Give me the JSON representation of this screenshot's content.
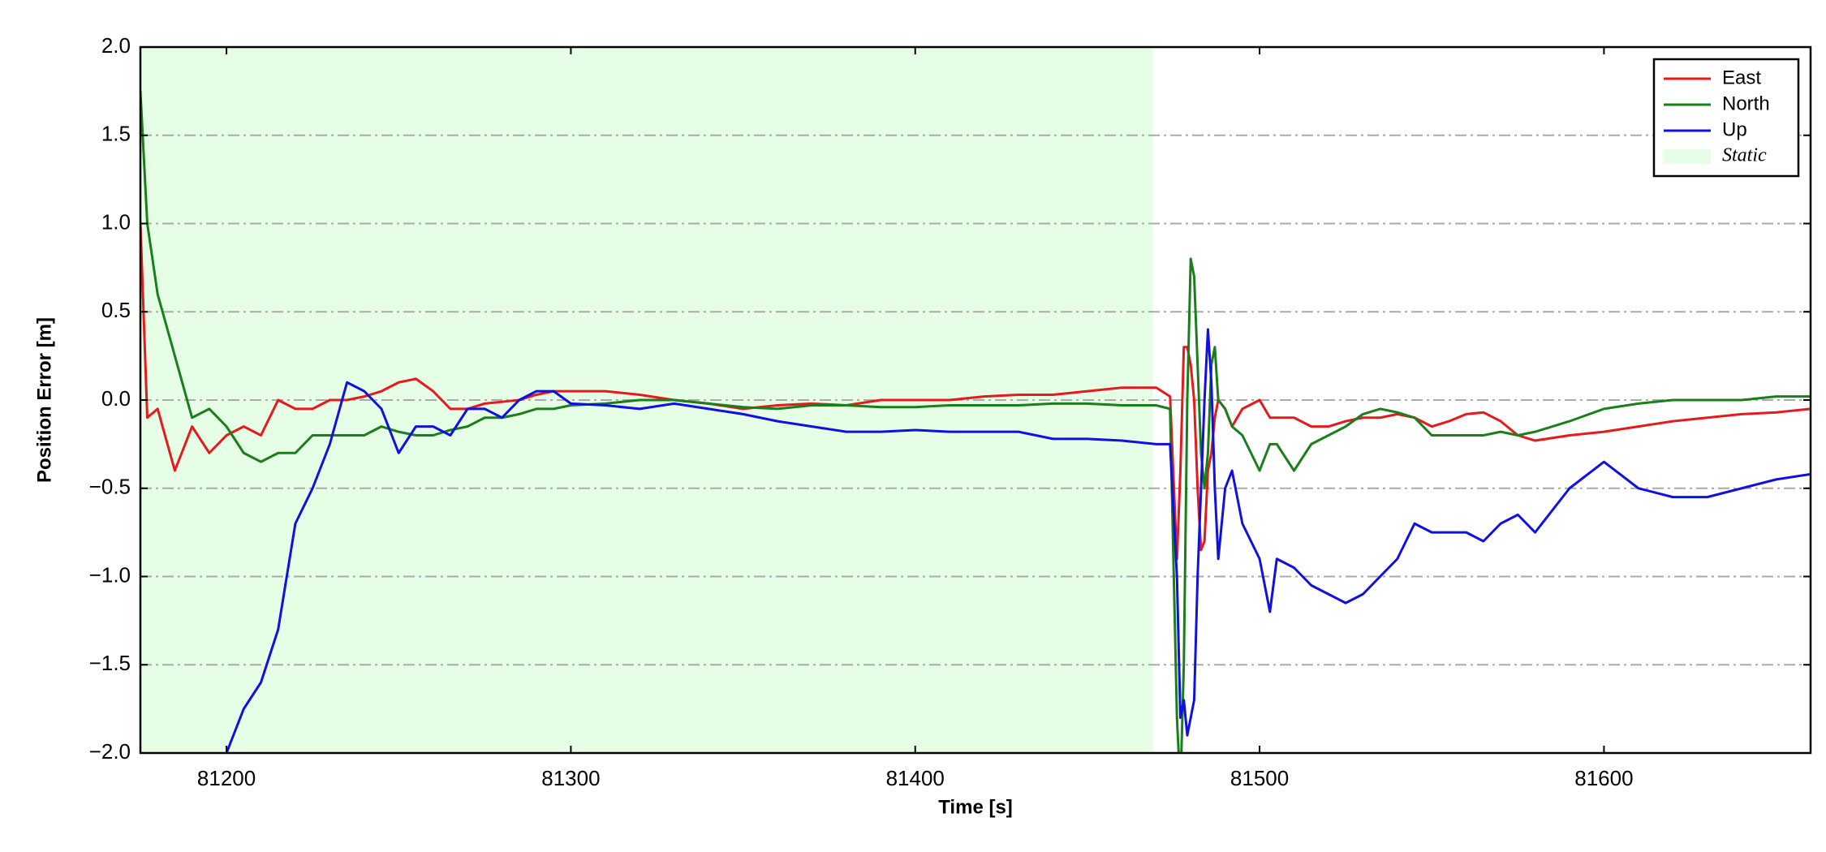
{
  "chart_data": {
    "type": "line",
    "xlabel": "Time [s]",
    "ylabel": "Position Error [m]",
    "xlim": [
      81175,
      81660
    ],
    "ylim": [
      -2.0,
      2.0
    ],
    "xticks": [
      81200,
      81300,
      81400,
      81500,
      81600
    ],
    "yticks": [
      {
        "value": -2.0,
        "label": "−2.0"
      },
      {
        "value": -1.5,
        "label": "−1.5"
      },
      {
        "value": -1.0,
        "label": "−1.0"
      },
      {
        "value": -0.5,
        "label": "−0.5"
      },
      {
        "value": 0.0,
        "label": "0.0"
      },
      {
        "value": 0.5,
        "label": "0.5"
      },
      {
        "value": 1.0,
        "label": "1.0"
      },
      {
        "value": 1.5,
        "label": "1.5"
      },
      {
        "value": 2.0,
        "label": "2.0"
      }
    ],
    "grid": true,
    "legend": "upper right",
    "shaded_regions": [
      {
        "name": "Static",
        "start": 81175,
        "end": 81469,
        "color": "#e6fde6"
      }
    ],
    "x": [
      81175,
      81177,
      81180,
      81185,
      81190,
      81195,
      81200,
      81205,
      81210,
      81215,
      81220,
      81225,
      81230,
      81235,
      81240,
      81245,
      81250,
      81255,
      81260,
      81265,
      81270,
      81275,
      81280,
      81285,
      81290,
      81295,
      81300,
      81310,
      81320,
      81330,
      81340,
      81350,
      81360,
      81370,
      81380,
      81390,
      81400,
      81410,
      81420,
      81430,
      81440,
      81450,
      81460,
      81470,
      81474,
      81476,
      81477,
      81478,
      81479,
      81480,
      81481,
      81482,
      81483,
      81484,
      81485,
      81486,
      81487,
      81488,
      81490,
      81492,
      81495,
      81500,
      81503,
      81505,
      81510,
      81515,
      81520,
      81525,
      81530,
      81535,
      81540,
      81545,
      81550,
      81555,
      81560,
      81565,
      81570,
      81575,
      81580,
      81590,
      81600,
      81610,
      81620,
      81630,
      81640,
      81650,
      81660
    ],
    "series": [
      {
        "name": "East",
        "color": "#e41a1c",
        "values": [
          1.0,
          -0.1,
          -0.05,
          -0.4,
          -0.15,
          -0.3,
          -0.2,
          -0.15,
          -0.2,
          0.0,
          -0.05,
          -0.05,
          0.0,
          0.0,
          0.02,
          0.05,
          0.1,
          0.12,
          0.05,
          -0.05,
          -0.05,
          -0.02,
          -0.01,
          0.0,
          0.03,
          0.05,
          0.05,
          0.05,
          0.03,
          0.0,
          -0.02,
          -0.05,
          -0.03,
          -0.02,
          -0.03,
          0.0,
          0.0,
          0.0,
          0.02,
          0.03,
          0.03,
          0.05,
          0.07,
          0.07,
          0.02,
          -0.9,
          -0.4,
          0.3,
          0.3,
          0.2,
          0.0,
          -0.5,
          -0.85,
          -0.8,
          -0.4,
          -0.3,
          -0.1,
          0.0,
          -0.05,
          -0.15,
          -0.05,
          0.0,
          -0.1,
          -0.1,
          -0.1,
          -0.15,
          -0.15,
          -0.12,
          -0.1,
          -0.1,
          -0.08,
          -0.1,
          -0.15,
          -0.12,
          -0.08,
          -0.07,
          -0.12,
          -0.2,
          -0.23,
          -0.2,
          -0.18,
          -0.15,
          -0.12,
          -0.1,
          -0.08,
          -0.07,
          -0.05
        ]
      },
      {
        "name": "North",
        "color": "#1a7f1a",
        "values": [
          1.75,
          1.0,
          0.6,
          0.25,
          -0.1,
          -0.05,
          -0.15,
          -0.3,
          -0.35,
          -0.3,
          -0.3,
          -0.2,
          -0.2,
          -0.2,
          -0.2,
          -0.15,
          -0.18,
          -0.2,
          -0.2,
          -0.17,
          -0.15,
          -0.1,
          -0.1,
          -0.08,
          -0.05,
          -0.05,
          -0.03,
          -0.02,
          0.0,
          0.0,
          -0.02,
          -0.04,
          -0.05,
          -0.03,
          -0.03,
          -0.04,
          -0.04,
          -0.03,
          -0.03,
          -0.03,
          -0.02,
          -0.02,
          -0.03,
          -0.03,
          -0.05,
          -1.8,
          -2.2,
          -1.5,
          0.0,
          0.8,
          0.7,
          0.2,
          -0.3,
          -0.5,
          -0.3,
          0.2,
          0.3,
          0.0,
          -0.05,
          -0.15,
          -0.2,
          -0.4,
          -0.25,
          -0.25,
          -0.4,
          -0.25,
          -0.2,
          -0.15,
          -0.08,
          -0.05,
          -0.07,
          -0.1,
          -0.2,
          -0.2,
          -0.2,
          -0.2,
          -0.18,
          -0.2,
          -0.18,
          -0.12,
          -0.05,
          -0.02,
          0.0,
          0.0,
          0.0,
          0.02,
          0.02
        ]
      },
      {
        "name": "Up",
        "color": "#1010e0",
        "values": [
          null,
          null,
          null,
          null,
          null,
          null,
          -2.0,
          -1.75,
          -1.6,
          -1.3,
          -0.7,
          -0.5,
          -0.25,
          0.1,
          0.05,
          -0.05,
          -0.3,
          -0.15,
          -0.15,
          -0.2,
          -0.05,
          -0.05,
          -0.1,
          0.0,
          0.05,
          0.05,
          -0.02,
          -0.03,
          -0.05,
          -0.02,
          -0.05,
          -0.08,
          -0.12,
          -0.15,
          -0.18,
          -0.18,
          -0.17,
          -0.18,
          -0.18,
          -0.18,
          -0.22,
          -0.22,
          -0.23,
          -0.25,
          -0.25,
          -1.0,
          -1.8,
          -1.7,
          -1.9,
          -1.8,
          -1.7,
          -1.0,
          -0.5,
          0.0,
          0.4,
          0.1,
          -0.5,
          -0.9,
          -0.5,
          -0.4,
          -0.7,
          -0.9,
          -1.2,
          -0.9,
          -0.95,
          -1.05,
          -1.1,
          -1.15,
          -1.1,
          -1.0,
          -0.9,
          -0.7,
          -0.75,
          -0.75,
          -0.75,
          -0.8,
          -0.7,
          -0.65,
          -0.75,
          -0.5,
          -0.35,
          -0.5,
          -0.55,
          -0.55,
          -0.5,
          -0.45,
          -0.42
        ]
      }
    ]
  }
}
